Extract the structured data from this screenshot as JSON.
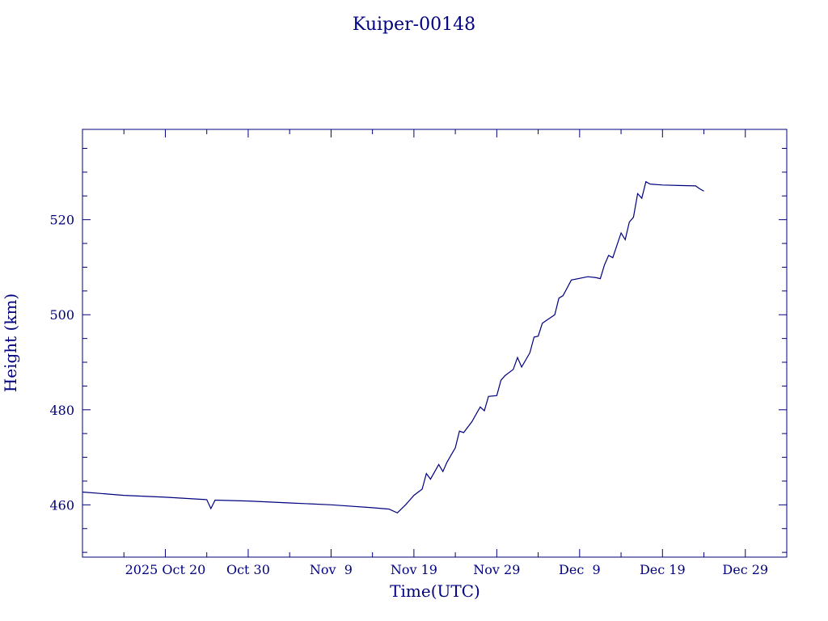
{
  "chart_data": {
    "type": "line",
    "title": "Kuiper-00148",
    "xlabel": "Time(UTC)",
    "ylabel": "Height (km)",
    "xlim": [
      "2025-10-10",
      "2026-01-03"
    ],
    "ylim": [
      449,
      539
    ],
    "x_ticks": [
      {
        "date": "2025-10-20",
        "label": "2025 Oct 20"
      },
      {
        "date": "2025-10-30",
        "label": "Oct 30"
      },
      {
        "date": "2025-11-09",
        "label": "Nov  9"
      },
      {
        "date": "2025-11-19",
        "label": "Nov 19"
      },
      {
        "date": "2025-11-29",
        "label": "Nov 29"
      },
      {
        "date": "2025-12-09",
        "label": "Dec  9"
      },
      {
        "date": "2025-12-19",
        "label": "Dec 19"
      },
      {
        "date": "2025-12-29",
        "label": "Dec 29"
      }
    ],
    "y_ticks": [
      460,
      480,
      500,
      520
    ],
    "grid": false,
    "line_color": "#00007f",
    "series": [
      {
        "points": [
          [
            "2025-10-10",
            462.7
          ],
          [
            "2025-10-15",
            462.0
          ],
          [
            "2025-10-20",
            461.6
          ],
          [
            "2025-10-25",
            461.1
          ],
          [
            "2025-10-25T12:00",
            459.2
          ],
          [
            "2025-10-26",
            461.0
          ],
          [
            "2025-10-30",
            460.8
          ],
          [
            "2025-11-04",
            460.4
          ],
          [
            "2025-11-09",
            460.0
          ],
          [
            "2025-11-14",
            459.4
          ],
          [
            "2025-11-16",
            459.1
          ],
          [
            "2025-11-17",
            458.3
          ],
          [
            "2025-11-18",
            460.0
          ],
          [
            "2025-11-19",
            462.0
          ],
          [
            "2025-11-20",
            463.3
          ],
          [
            "2025-11-20T12:00",
            466.6
          ],
          [
            "2025-11-21",
            465.4
          ],
          [
            "2025-11-22",
            468.5
          ],
          [
            "2025-11-22T12:00",
            467.0
          ],
          [
            "2025-11-23",
            469.0
          ],
          [
            "2025-11-24",
            472.0
          ],
          [
            "2025-11-24T12:00",
            475.5
          ],
          [
            "2025-11-25",
            475.2
          ],
          [
            "2025-11-26",
            477.5
          ],
          [
            "2025-11-27",
            480.6
          ],
          [
            "2025-11-27T12:00",
            479.8
          ],
          [
            "2025-11-28",
            482.8
          ],
          [
            "2025-11-29",
            483.0
          ],
          [
            "2025-11-29T12:00",
            486.2
          ],
          [
            "2025-11-30",
            487.2
          ],
          [
            "2025-12-01",
            488.5
          ],
          [
            "2025-12-01T12:00",
            491.0
          ],
          [
            "2025-12-02",
            489.0
          ],
          [
            "2025-12-03",
            492.0
          ],
          [
            "2025-12-03T12:00",
            495.3
          ],
          [
            "2025-12-04",
            495.5
          ],
          [
            "2025-12-04T12:00",
            498.2
          ],
          [
            "2025-12-05",
            498.8
          ],
          [
            "2025-12-06",
            500.0
          ],
          [
            "2025-12-06T12:00",
            503.5
          ],
          [
            "2025-12-07",
            504.0
          ],
          [
            "2025-12-08",
            507.3
          ],
          [
            "2025-12-10",
            508.0
          ],
          [
            "2025-12-11",
            507.8
          ],
          [
            "2025-12-11T12:00",
            507.6
          ],
          [
            "2025-12-12",
            510.5
          ],
          [
            "2025-12-12T12:00",
            512.5
          ],
          [
            "2025-12-13",
            512.0
          ],
          [
            "2025-12-14",
            517.2
          ],
          [
            "2025-12-14T12:00",
            515.8
          ],
          [
            "2025-12-15",
            519.5
          ],
          [
            "2025-12-15T12:00",
            520.5
          ],
          [
            "2025-12-16",
            525.5
          ],
          [
            "2025-12-16T12:00",
            524.5
          ],
          [
            "2025-12-17",
            528.0
          ],
          [
            "2025-12-17T12:00",
            527.5
          ],
          [
            "2025-12-19",
            527.3
          ],
          [
            "2025-12-21",
            527.2
          ],
          [
            "2025-12-23",
            527.1
          ],
          [
            "2025-12-23T12:00",
            526.5
          ],
          [
            "2025-12-24",
            526.0
          ]
        ]
      }
    ]
  }
}
